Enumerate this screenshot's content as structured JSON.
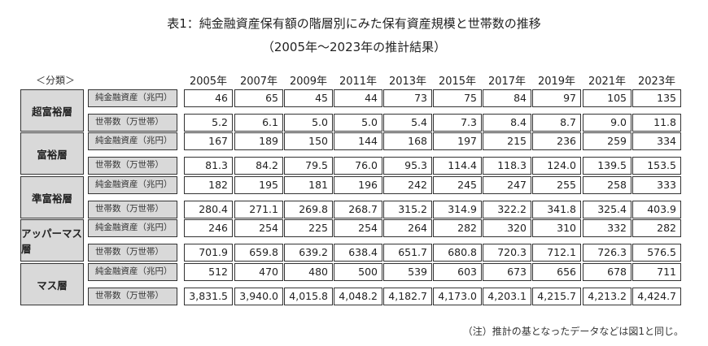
{
  "title": "表1：純金融資産保有額の階層別にみた保有資産規模と世帯数の推移",
  "subtitle": "（2005年〜2023年の推計結果）",
  "category_header": "＜分類＞",
  "years": [
    "2005年",
    "2007年",
    "2009年",
    "2011年",
    "2013年",
    "2015年",
    "2017年",
    "2019年",
    "2021年",
    "2023年"
  ],
  "row_labels": {
    "assets": "純金融資産（兆円）",
    "households": "世帯数（万世帯）"
  },
  "groups": [
    {
      "name": "超富裕層",
      "assets": [
        "46",
        "65",
        "45",
        "44",
        "73",
        "75",
        "84",
        "97",
        "105",
        "135"
      ],
      "households": [
        "5.2",
        "6.1",
        "5.0",
        "5.0",
        "5.4",
        "7.3",
        "8.4",
        "8.7",
        "9.0",
        "11.8"
      ]
    },
    {
      "name": "富裕層",
      "assets": [
        "167",
        "189",
        "150",
        "144",
        "168",
        "197",
        "215",
        "236",
        "259",
        "334"
      ],
      "households": [
        "81.3",
        "84.2",
        "79.5",
        "76.0",
        "95.3",
        "114.4",
        "118.3",
        "124.0",
        "139.5",
        "153.5"
      ]
    },
    {
      "name": "準富裕層",
      "assets": [
        "182",
        "195",
        "181",
        "196",
        "242",
        "245",
        "247",
        "255",
        "258",
        "333"
      ],
      "households": [
        "280.4",
        "271.1",
        "269.8",
        "268.7",
        "315.2",
        "314.9",
        "322.2",
        "341.8",
        "325.4",
        "403.9"
      ]
    },
    {
      "name": "アッパーマス層",
      "assets": [
        "246",
        "254",
        "225",
        "254",
        "264",
        "282",
        "320",
        "310",
        "332",
        "282"
      ],
      "households": [
        "701.9",
        "659.8",
        "639.2",
        "638.4",
        "651.7",
        "680.8",
        "720.3",
        "712.1",
        "726.3",
        "576.5"
      ]
    },
    {
      "name": "マス層",
      "assets": [
        "512",
        "470",
        "480",
        "500",
        "539",
        "603",
        "673",
        "656",
        "678",
        "711"
      ],
      "households": [
        "3,831.5",
        "3,940.0",
        "4,015.8",
        "4,048.2",
        "4,182.7",
        "4,173.0",
        "4,203.1",
        "4,215.7",
        "4,213.2",
        "4,424.7"
      ]
    }
  ],
  "note": "（注）推計の基となったデータなどは図1と同じ。"
}
